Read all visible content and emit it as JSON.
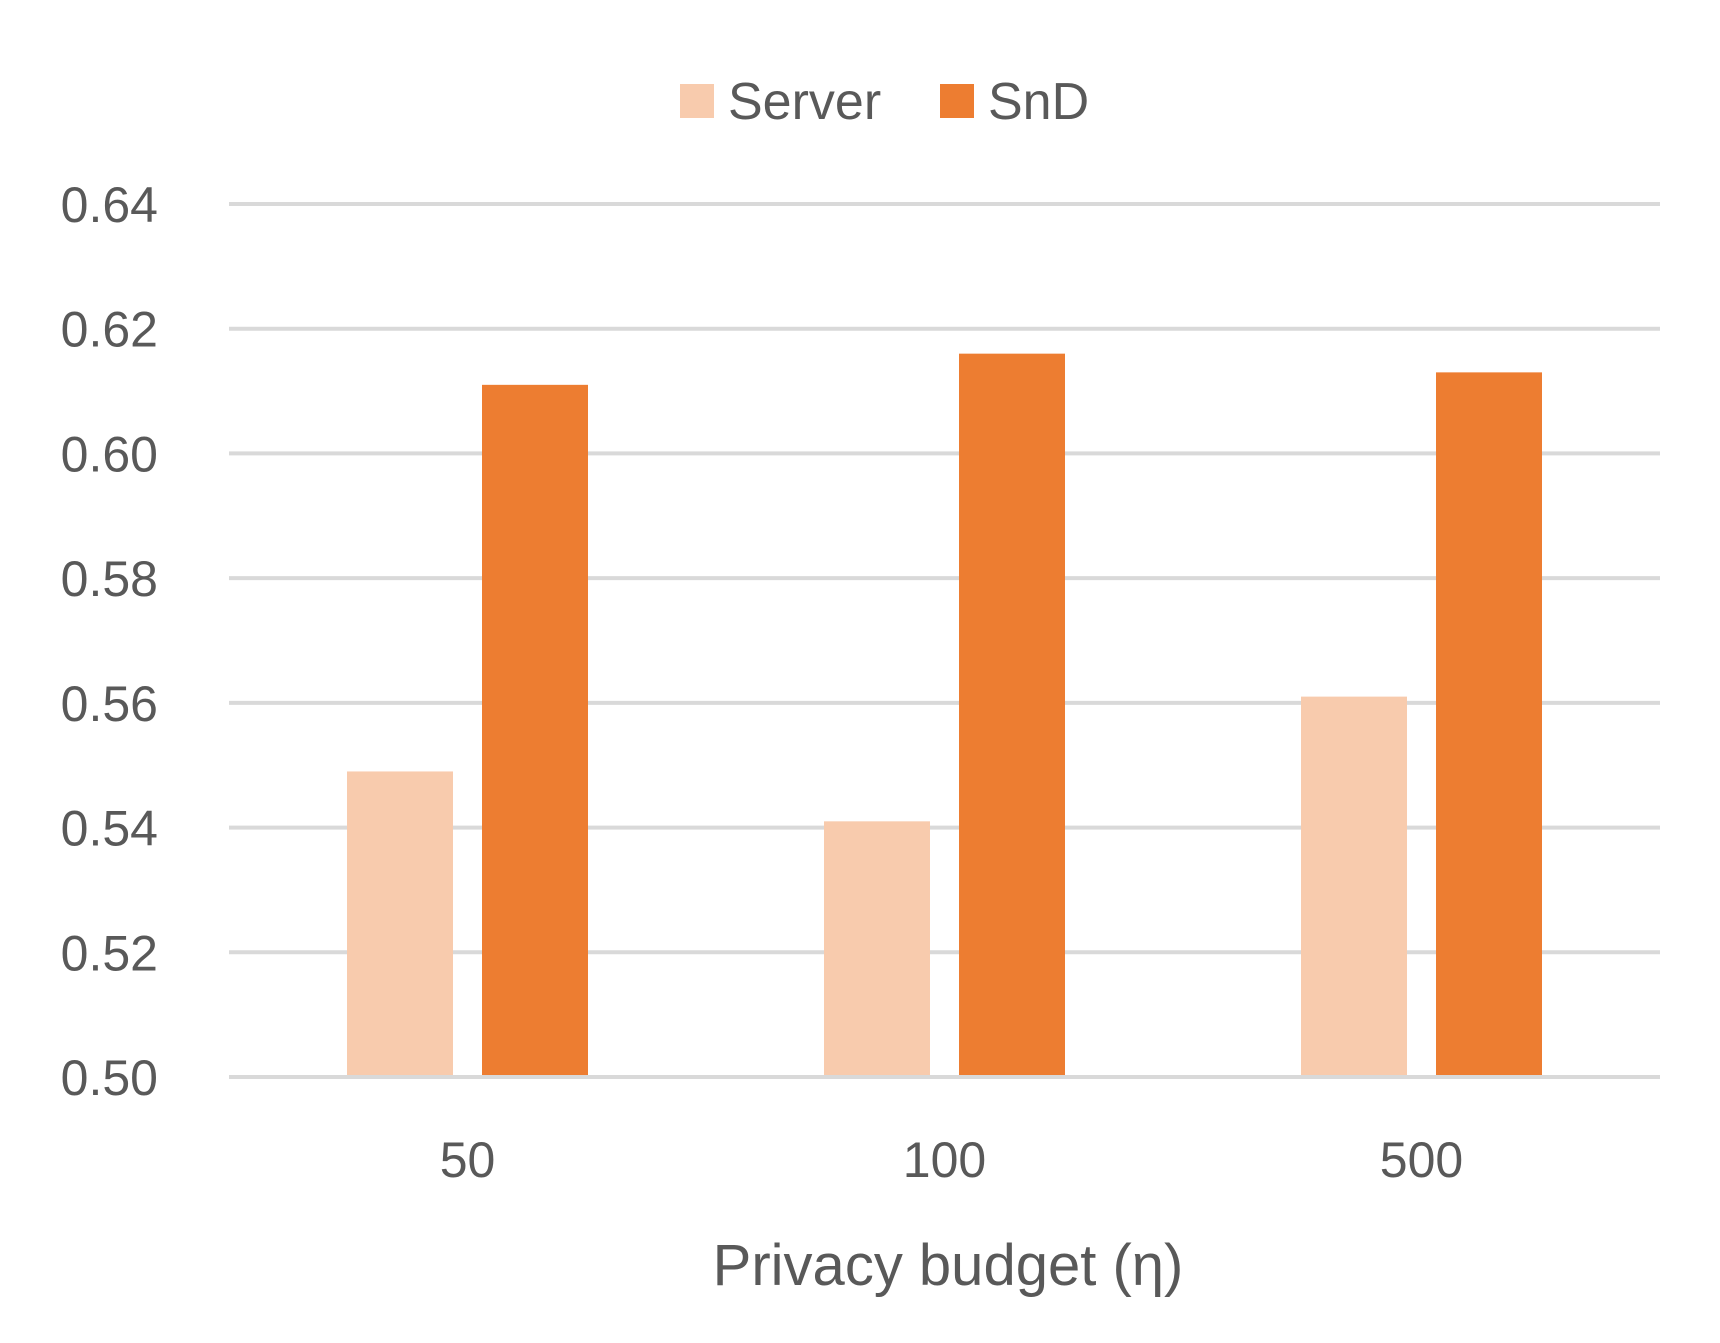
{
  "chart_data": {
    "type": "bar",
    "title": "",
    "xlabel": "Privacy budget (η)",
    "ylabel": "",
    "categories": [
      "50",
      "100",
      "500"
    ],
    "series": [
      {
        "name": "Server",
        "color": "#f8cbad",
        "values": [
          0.549,
          0.541,
          0.561
        ]
      },
      {
        "name": "SnD",
        "color": "#ed7d31",
        "values": [
          0.611,
          0.616,
          0.613
        ]
      }
    ],
    "ylim": [
      0.5,
      0.64
    ],
    "yticks": [
      "0.50",
      "0.52",
      "0.54",
      "0.56",
      "0.58",
      "0.60",
      "0.62",
      "0.64"
    ],
    "grid": true,
    "legend_position": "top-center",
    "gridline_color": "#d9d9d9",
    "text_color": "#595959"
  }
}
